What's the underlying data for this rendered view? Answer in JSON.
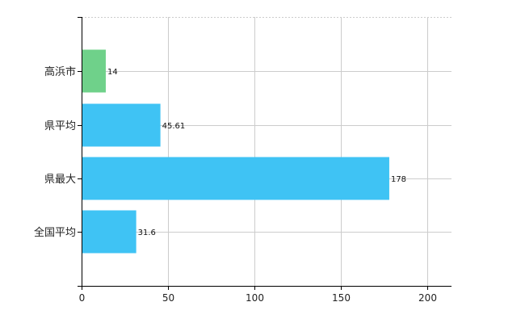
{
  "chart_data": {
    "type": "bar",
    "orientation": "horizontal",
    "categories": [
      "高浜市",
      "県平均",
      "県最大",
      "全国平均"
    ],
    "values": [
      14,
      45.61,
      178,
      31.6
    ],
    "data_labels": [
      "14",
      "45.61",
      "178",
      "31.6"
    ],
    "bar_colors": [
      "#6fd18a",
      "#3fc3f4",
      "#3fc3f4",
      "#3fc3f4"
    ],
    "xlim": [
      0,
      214
    ],
    "x_ticks": [
      0,
      50,
      100,
      150,
      200
    ],
    "grid": true,
    "grid_color": "#cccccc",
    "axis_color": "#000000",
    "title": "",
    "xlabel": "",
    "ylabel": ""
  }
}
